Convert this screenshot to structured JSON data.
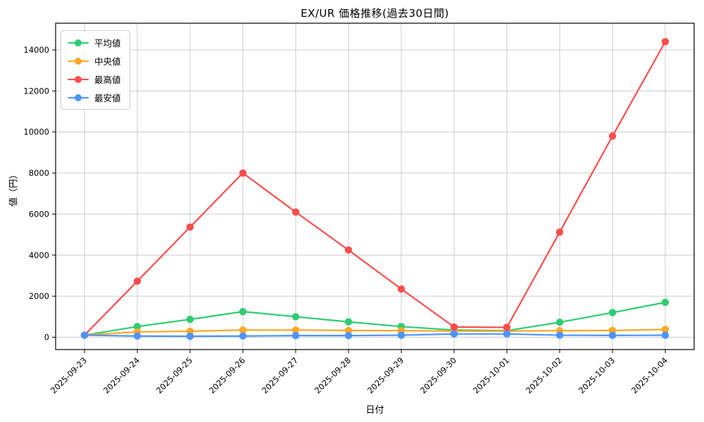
{
  "chart_data": {
    "type": "line",
    "title": "EX/UR 価格推移(過去30日間)",
    "xlabel": "日付",
    "ylabel": "値（円）",
    "categories": [
      "2025-09-23",
      "2025-09-24",
      "2025-09-25",
      "2025-09-26",
      "2025-09-27",
      "2025-09-28",
      "2025-09-29",
      "2025-09-30",
      "2025-10-01",
      "2025-10-02",
      "2025-10-03",
      "2025-10-04"
    ],
    "series": [
      {
        "key": "average",
        "name": "平均値",
        "color": "#2ecc71",
        "values": [
          100,
          520,
          870,
          1250,
          1000,
          750,
          520,
          350,
          320,
          730,
          1200,
          1700
        ]
      },
      {
        "key": "median",
        "name": "中央値",
        "color": "#ffa726",
        "values": [
          100,
          260,
          290,
          350,
          350,
          330,
          320,
          300,
          300,
          320,
          330,
          380
        ]
      },
      {
        "key": "highest",
        "name": "最高値",
        "color": "#ff4d4d",
        "values": [
          100,
          2730,
          5370,
          8000,
          6100,
          4250,
          2350,
          500,
          480,
          5120,
          9800,
          14400
        ]
      },
      {
        "key": "lowest",
        "name": "最安値",
        "color": "#4d94ff",
        "values": [
          100,
          60,
          50,
          60,
          80,
          80,
          100,
          160,
          160,
          100,
          90,
          100
        ]
      }
    ],
    "ylim": [
      -600,
      15300
    ],
    "yticks": [
      0,
      2000,
      4000,
      6000,
      8000,
      10000,
      12000,
      14000
    ],
    "grid": true,
    "grid_color": "#cccccc",
    "spine_color": "#000000",
    "legend_position": "upper left",
    "draw_order_note": "series drawn in listed order; last series (最安値) on top"
  }
}
